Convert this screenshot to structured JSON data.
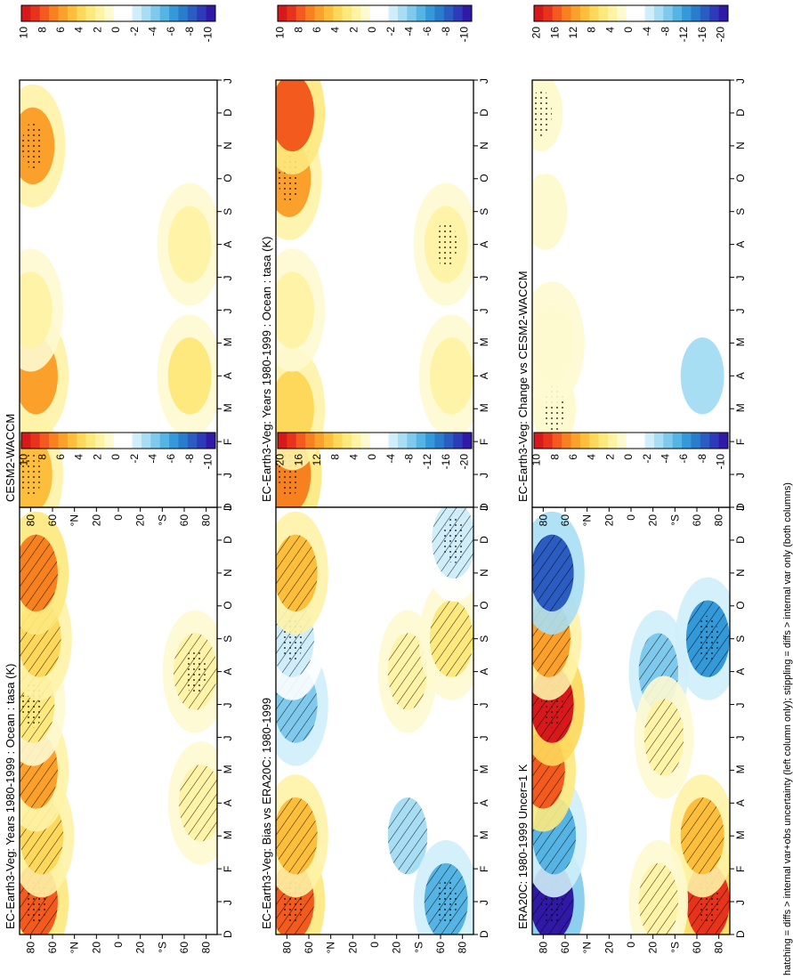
{
  "figure": {
    "footnote": "hatching = diffs > internal var+obs uncertainty (left column only); stippling = diffs > internal var only (both columns)",
    "month_ticks": [
      "D",
      "J",
      "F",
      "M",
      "A",
      "M",
      "J",
      "J",
      "A",
      "S",
      "O",
      "N",
      "D",
      "J"
    ],
    "lat_ticks": [
      "80",
      "60",
      "°N",
      "20",
      "0",
      "20",
      "°S",
      "60",
      "80"
    ]
  },
  "panels": [
    {
      "title": "EC-Earth3-Veg: Years 1980-1999 : Ocean : tasa (K)",
      "scale": 10
    },
    {
      "title": "EC-Earth3-Veg: Years 1980-1999 : Ocean : tasa (K)",
      "scale": 10
    },
    {
      "title": "ERA20C: 1980-1999 Uncer=1 K",
      "scale": 10
    },
    {
      "title": "CESM2-WACCM",
      "scale": 10
    },
    {
      "title": "EC-Earth3-Veg: Bias vs ERA20C: 1980-1999",
      "scale": 20
    },
    {
      "title": "EC-Earth3-Veg: Change vs CESM2-WACCM",
      "scale": 20
    }
  ],
  "colorbars": [
    {
      "labels": [
        "10",
        "8",
        "6",
        "4",
        "2",
        "0",
        "-2",
        "-4",
        "-6",
        "-8",
        "-10"
      ]
    },
    {
      "labels": [
        "10",
        "8",
        "6",
        "4",
        "2",
        "0",
        "-2",
        "-4",
        "-6",
        "-8",
        "-10"
      ]
    },
    {
      "labels": [
        "10",
        "8",
        "6",
        "4",
        "2",
        "0",
        "-2",
        "-4",
        "-6",
        "-8",
        "-10"
      ]
    },
    {
      "labels": [
        "10",
        "8",
        "6",
        "4",
        "2",
        "0",
        "-2",
        "-4",
        "-6",
        "-8",
        "-10"
      ]
    },
    {
      "labels": [
        "20",
        "16",
        "12",
        "8",
        "4",
        "0",
        "-4",
        "-8",
        "-12",
        "-16",
        "-20"
      ]
    },
    {
      "labels": [
        "20",
        "16",
        "12",
        "8",
        "4",
        "0",
        "-4",
        "-8",
        "-12",
        "-16",
        "-20"
      ]
    }
  ],
  "colors": {
    "palette": [
      "#d7191c",
      "#e8331c",
      "#f25a1e",
      "#f7801f",
      "#fba02a",
      "#fdbe3c",
      "#fed85a",
      "#fde97d",
      "#fef3a6",
      "#fefad0",
      "#ffffff",
      "#ffffff",
      "#cfeef9",
      "#a8def3",
      "#7fcaec",
      "#55b4e3",
      "#3399d9",
      "#2a7ccd",
      "#2b5cc2",
      "#2e3bb8",
      "#3019a6"
    ]
  },
  "chart_data": [
    {
      "type": "heatmap",
      "title": "EC-Earth3-Veg: Years 1980-1999 : Ocean : tasa (K)",
      "x": "month",
      "y": "latitude",
      "ylim": [
        -90,
        90
      ],
      "colorbar_range": [
        -10,
        10
      ],
      "features": [
        {
          "month": 1,
          "lat": 75,
          "value": 8
        },
        {
          "month": 3,
          "lat": 70,
          "value": 4
        },
        {
          "month": 5,
          "lat": 75,
          "value": 6
        },
        {
          "month": 7,
          "lat": 78,
          "value": 3
        },
        {
          "month": 9,
          "lat": 72,
          "value": 4
        },
        {
          "month": 11,
          "lat": 75,
          "value": 7
        },
        {
          "month": 8,
          "lat": -70,
          "value": 2
        },
        {
          "month": 4,
          "lat": -75,
          "value": 2
        }
      ]
    },
    {
      "type": "heatmap",
      "title": "EC-Earth3-Veg: Years 1980-1999 : Ocean : tasa (K)",
      "x": "month",
      "y": "latitude",
      "ylim": [
        -90,
        90
      ],
      "colorbar_range": [
        -10,
        10
      ],
      "features": [
        {
          "month": 1,
          "lat": 78,
          "value": 7
        },
        {
          "month": 3,
          "lat": 75,
          "value": 4
        },
        {
          "month": 6,
          "lat": 75,
          "value": 2
        },
        {
          "month": 10,
          "lat": 78,
          "value": 6
        },
        {
          "month": 12,
          "lat": 75,
          "value": 8
        },
        {
          "month": 4,
          "lat": -70,
          "value": 2
        },
        {
          "month": 8,
          "lat": -65,
          "value": 2
        }
      ]
    },
    {
      "type": "heatmap",
      "title": "ERA20C: 1980-1999 Uncer=1 K",
      "x": "month",
      "y": "latitude",
      "ylim": [
        -90,
        90
      ],
      "colorbar_range": [
        -10,
        10
      ],
      "features": [
        {
          "month": 1,
          "lat": 72,
          "value": -10
        },
        {
          "month": 3,
          "lat": 70,
          "value": -5
        },
        {
          "month": 5,
          "lat": 80,
          "value": 8
        },
        {
          "month": 7,
          "lat": 72,
          "value": 10
        },
        {
          "month": 9,
          "lat": 75,
          "value": 6
        },
        {
          "month": 11,
          "lat": 72,
          "value": -8
        },
        {
          "month": 1,
          "lat": -70,
          "value": 9
        },
        {
          "month": 3,
          "lat": -65,
          "value": 5
        },
        {
          "month": 8,
          "lat": -25,
          "value": -4
        },
        {
          "month": 9,
          "lat": -70,
          "value": -6
        },
        {
          "month": 1,
          "lat": -25,
          "value": 2
        },
        {
          "month": 6,
          "lat": -30,
          "value": 2
        }
      ]
    },
    {
      "type": "heatmap",
      "title": "CESM2-WACCM",
      "x": "month",
      "y": "latitude",
      "ylim": [
        -90,
        90
      ],
      "colorbar_range": [
        -10,
        10
      ],
      "features": [
        {
          "month": 1,
          "lat": 80,
          "value": 5
        },
        {
          "month": 4,
          "lat": 75,
          "value": 6
        },
        {
          "month": 6,
          "lat": 80,
          "value": 2
        },
        {
          "month": 11,
          "lat": 78,
          "value": 6
        },
        {
          "month": 4,
          "lat": -65,
          "value": 3
        },
        {
          "month": 8,
          "lat": -65,
          "value": 2
        }
      ]
    },
    {
      "type": "heatmap",
      "title": "EC-Earth3-Veg: Bias vs ERA20C: 1980-1999",
      "x": "month",
      "y": "latitude",
      "ylim": [
        -90,
        90
      ],
      "colorbar_range": [
        -20,
        20
      ],
      "features": [
        {
          "month": 1,
          "lat": 75,
          "value": 16
        },
        {
          "month": 3,
          "lat": 72,
          "value": 10
        },
        {
          "month": 7,
          "lat": 72,
          "value": -8
        },
        {
          "month": 9,
          "lat": 75,
          "value": -4
        },
        {
          "month": 11,
          "lat": 72,
          "value": 10
        },
        {
          "month": 3,
          "lat": -30,
          "value": -6
        },
        {
          "month": 1,
          "lat": -65,
          "value": -10
        },
        {
          "month": 8,
          "lat": -30,
          "value": 4
        },
        {
          "month": 9,
          "lat": -70,
          "value": 6
        },
        {
          "month": 12,
          "lat": -72,
          "value": -4
        }
      ]
    },
    {
      "type": "heatmap",
      "title": "EC-Earth3-Veg: Change vs CESM2-WACCM",
      "x": "month",
      "y": "latitude",
      "ylim": [
        -90,
        90
      ],
      "colorbar_range": [
        -20,
        20
      ],
      "features": [
        {
          "month": 3,
          "lat": 70,
          "value": 2
        },
        {
          "month": 5,
          "lat": 72,
          "value": 3
        },
        {
          "month": 9,
          "lat": 78,
          "value": 2
        },
        {
          "month": 12,
          "lat": 82,
          "value": 2
        },
        {
          "month": 4,
          "lat": -65,
          "value": -6
        }
      ]
    }
  ]
}
